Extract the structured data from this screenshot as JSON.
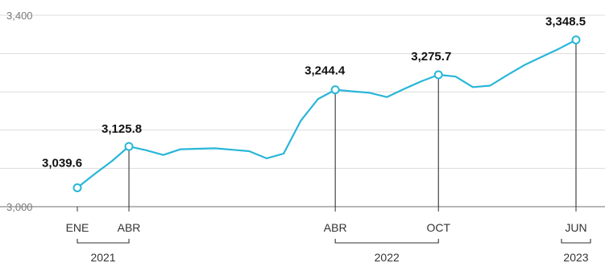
{
  "chart_data": {
    "type": "line",
    "ylim": [
      3000,
      3400
    ],
    "yticks": [
      "3,400",
      "3,000"
    ],
    "y_gridlines": [
      3000,
      3080,
      3160,
      3240,
      3320,
      3400
    ],
    "series_color": "#29b6d8",
    "x": [
      "2021-01",
      "2021-02",
      "2021-03",
      "2021-04",
      "2021-05",
      "2021-06",
      "2021-07",
      "2021-08",
      "2021-09",
      "2021-10",
      "2021-11",
      "2021-12",
      "2022-01",
      "2022-02",
      "2022-03",
      "2022-04",
      "2022-05",
      "2022-06",
      "2022-07",
      "2022-08",
      "2022-09",
      "2022-10",
      "2022-11",
      "2022-12",
      "2023-01",
      "2023-02",
      "2023-03",
      "2023-04",
      "2023-05",
      "2023-06"
    ],
    "values": [
      3039.6,
      3068,
      3095,
      3125.8,
      3118,
      3108,
      3120,
      3121,
      3122,
      3119,
      3116,
      3101,
      3111,
      3180,
      3225,
      3244.4,
      3241,
      3238,
      3229,
      3246,
      3262,
      3275.7,
      3272,
      3250,
      3253,
      3275,
      3296,
      3313,
      3330,
      3348.5
    ],
    "highlights": [
      {
        "x": "2021-01",
        "label": "3,039.6"
      },
      {
        "x": "2021-04",
        "label": "3,125.8"
      },
      {
        "x": "2022-04",
        "label": "3,244.4"
      },
      {
        "x": "2022-10",
        "label": "3,275.7"
      },
      {
        "x": "2023-06",
        "label": "3,348.5"
      }
    ],
    "x_tick_labels": [
      {
        "x": "2021-01",
        "label": "ENE"
      },
      {
        "x": "2021-04",
        "label": "ABR"
      },
      {
        "x": "2022-04",
        "label": "ABR"
      },
      {
        "x": "2022-10",
        "label": "OCT"
      },
      {
        "x": "2023-06",
        "label": "JUN"
      }
    ],
    "year_groups": [
      {
        "label": "2021",
        "from": "2021-01",
        "to": "2021-04"
      },
      {
        "label": "2022",
        "from": "2022-04",
        "to": "2022-10"
      },
      {
        "label": "2023",
        "from": "2023-06",
        "to": "2023-06"
      }
    ]
  }
}
